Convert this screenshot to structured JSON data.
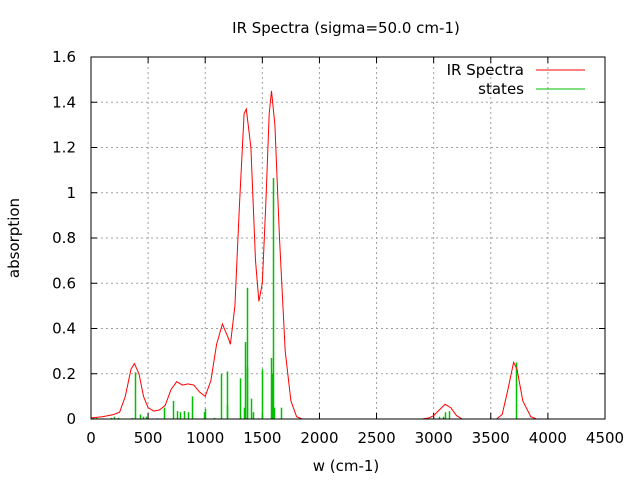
{
  "chart_data": {
    "type": "line",
    "title": "IR Spectra (sigma=50.0 cm-1)",
    "xlabel": "w (cm-1)",
    "ylabel": "absorption",
    "xlim": [
      0,
      4500
    ],
    "ylim": [
      0,
      1.6
    ],
    "grid": true,
    "legend_position": "top-right",
    "xticks": [
      "0",
      "500",
      "1000",
      "1500",
      "2000",
      "2500",
      "3000",
      "3500",
      "4000",
      "4500"
    ],
    "xtick_values": [
      0,
      500,
      1000,
      1500,
      2000,
      2500,
      3000,
      3500,
      4000,
      4500
    ],
    "yticks": [
      "0",
      "0.2",
      "0.4",
      "0.6",
      "0.8",
      "1",
      "1.2",
      "1.4",
      "1.6"
    ],
    "ytick_values": [
      0,
      0.2,
      0.4,
      0.6,
      0.8,
      1,
      1.2,
      1.4,
      1.6
    ],
    "series": [
      {
        "name": "IR Spectra",
        "style": "line",
        "color": "#ff0000",
        "x": [
          0,
          100,
          200,
          250,
          300,
          350,
          380,
          420,
          460,
          500,
          550,
          600,
          650,
          700,
          750,
          800,
          850,
          900,
          950,
          1000,
          1050,
          1100,
          1150,
          1200,
          1220,
          1260,
          1300,
          1340,
          1360,
          1400,
          1440,
          1470,
          1500,
          1530,
          1560,
          1580,
          1610,
          1650,
          1700,
          1750,
          1800,
          1850,
          2900,
          2960,
          3000,
          3050,
          3100,
          3150,
          3200,
          3250,
          3550,
          3600,
          3650,
          3700,
          3730,
          3780,
          3850,
          3900,
          4500
        ],
        "y": [
          0.005,
          0.01,
          0.02,
          0.03,
          0.1,
          0.22,
          0.245,
          0.2,
          0.1,
          0.05,
          0.035,
          0.04,
          0.06,
          0.13,
          0.165,
          0.15,
          0.155,
          0.15,
          0.12,
          0.1,
          0.17,
          0.33,
          0.42,
          0.36,
          0.33,
          0.5,
          0.95,
          1.35,
          1.37,
          1.2,
          0.7,
          0.52,
          0.6,
          0.95,
          1.35,
          1.45,
          1.3,
          0.8,
          0.3,
          0.08,
          0.01,
          0,
          0,
          0.005,
          0.015,
          0.04,
          0.065,
          0.05,
          0.015,
          0,
          0,
          0.02,
          0.13,
          0.25,
          0.22,
          0.08,
          0.01,
          0,
          0
        ]
      },
      {
        "name": "states",
        "style": "impulses",
        "color": "#00c000",
        "x": [
          15,
          45,
          95,
          175,
          200,
          240,
          360,
          385,
          430,
          455,
          480,
          580,
          640,
          720,
          750,
          780,
          810,
          850,
          880,
          910,
          990,
          1000,
          1080,
          1136,
          1188,
          1192,
          1305,
          1340,
          1350,
          1363,
          1370,
          1400,
          1420,
          1460,
          1497,
          1580,
          1585,
          1591,
          1600,
          1664,
          2998,
          3050,
          3080,
          3103,
          3138,
          3724
        ],
        "y": [
          0.005,
          0.005,
          0.003,
          0.005,
          0.01,
          0.005,
          0.005,
          0.206,
          0.02,
          0.01,
          0.01,
          0.003,
          0.05,
          0.08,
          0.035,
          0.03,
          0.035,
          0.03,
          0.1,
          0.003,
          0.03,
          0.045,
          0.005,
          0.2,
          0.21,
          0.06,
          0.18,
          0.05,
          0.34,
          0.58,
          0.23,
          0.09,
          0.03,
          0.003,
          0.22,
          0.27,
          0.2,
          1.065,
          0.05,
          0.05,
          0.003,
          0.01,
          0.01,
          0.03,
          0.035,
          0.25
        ]
      }
    ]
  }
}
